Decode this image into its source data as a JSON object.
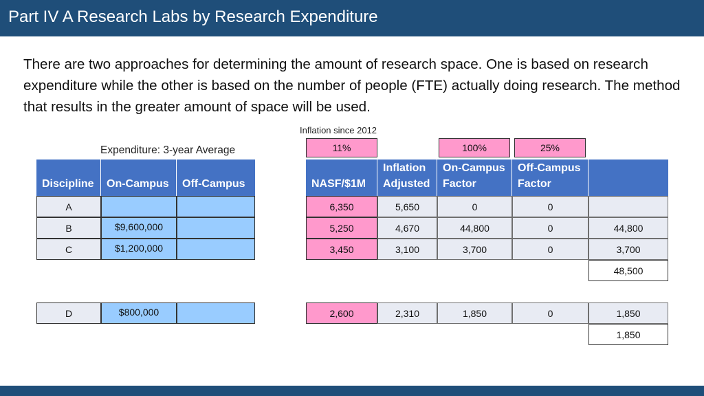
{
  "slide": {
    "title": "Part IV A   Research Labs by Research Expenditure",
    "intro": "There are two approaches for determining the amount of research space.  One is based on research expenditure while the other is based on the number of people (FTE) actually doing research.  The method that results in the greater amount of space will be used."
  },
  "labels": {
    "inflation_since": "Inflation since 2012",
    "expenditure_avg": "Expenditure: 3-year Average"
  },
  "factors": {
    "inflation": "11%",
    "on_campus": "100%",
    "off_campus": "25%"
  },
  "headers": {
    "discipline": "Discipline",
    "on_campus": "On-Campus",
    "off_campus": "Off-Campus",
    "nasf": "NASF/$1M",
    "infl_1": "Inflation",
    "infl_2": "Adjusted",
    "oncf_1": "On-Campus",
    "oncf_2": "Factor",
    "offcf_1": "Off-Campus",
    "offcf_2": "Factor"
  },
  "rows": [
    {
      "discipline": "A",
      "on_campus": "",
      "off_campus": "",
      "nasf": "6,350",
      "inflation": "5,650",
      "on_factor": "0",
      "off_factor": "0",
      "total": ""
    },
    {
      "discipline": "B",
      "on_campus": "$9,600,000",
      "off_campus": "",
      "nasf": "5,250",
      "inflation": "4,670",
      "on_factor": "44,800",
      "off_factor": "0",
      "total": "44,800"
    },
    {
      "discipline": "C",
      "on_campus": "$1,200,000",
      "off_campus": "",
      "nasf": "3,450",
      "inflation": "3,100",
      "on_factor": "3,700",
      "off_factor": "0",
      "total": "3,700"
    },
    {
      "discipline": "D",
      "on_campus": "$800,000",
      "off_campus": "",
      "nasf": "2,600",
      "inflation": "2,310",
      "on_factor": "1,850",
      "off_factor": "0",
      "total": "1,850"
    }
  ],
  "subtotals": {
    "abc": "48,500",
    "d": "1,850"
  }
}
